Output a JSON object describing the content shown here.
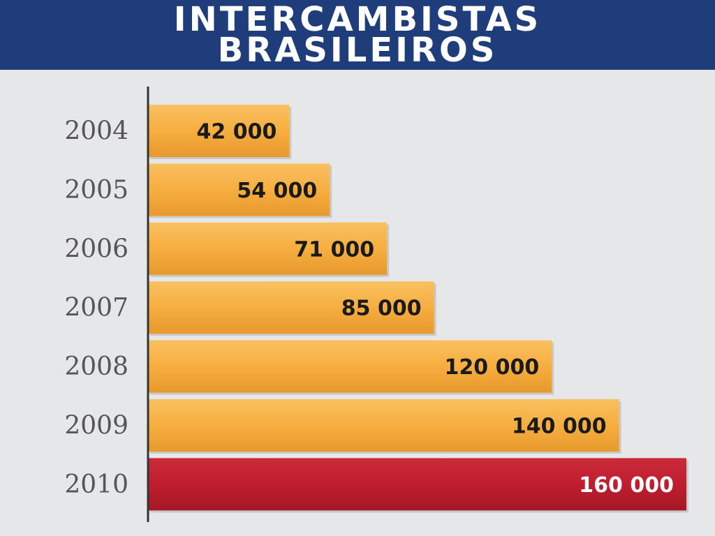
{
  "chart_data": {
    "type": "bar",
    "orientation": "horizontal",
    "title": "INTERCAMBISTAS BRASILEIROS",
    "title_lines": [
      "INTERCAMBISTAS",
      "BRASILEIROS"
    ],
    "categories": [
      "2004",
      "2005",
      "2006",
      "2007",
      "2008",
      "2009",
      "2010"
    ],
    "values": [
      42000,
      54000,
      71000,
      85000,
      120000,
      140000,
      160000
    ],
    "value_labels": [
      "42 000",
      "54 000",
      "71 000",
      "85 000",
      "120 000",
      "140 000",
      "160 000"
    ],
    "xlim": [
      0,
      160000
    ],
    "highlight_index": 6,
    "xlabel": "",
    "ylabel": "",
    "grid": false,
    "colors": {
      "header_bg": "#1f3c7b",
      "background": "#e6e7e9",
      "bar": "#f6ae3f",
      "bar_highlight": "#bf1e2e",
      "label_dark": "#1a1a1a",
      "label_light": "#ffffff",
      "category_text": "#555555",
      "axis": "#333333"
    }
  }
}
